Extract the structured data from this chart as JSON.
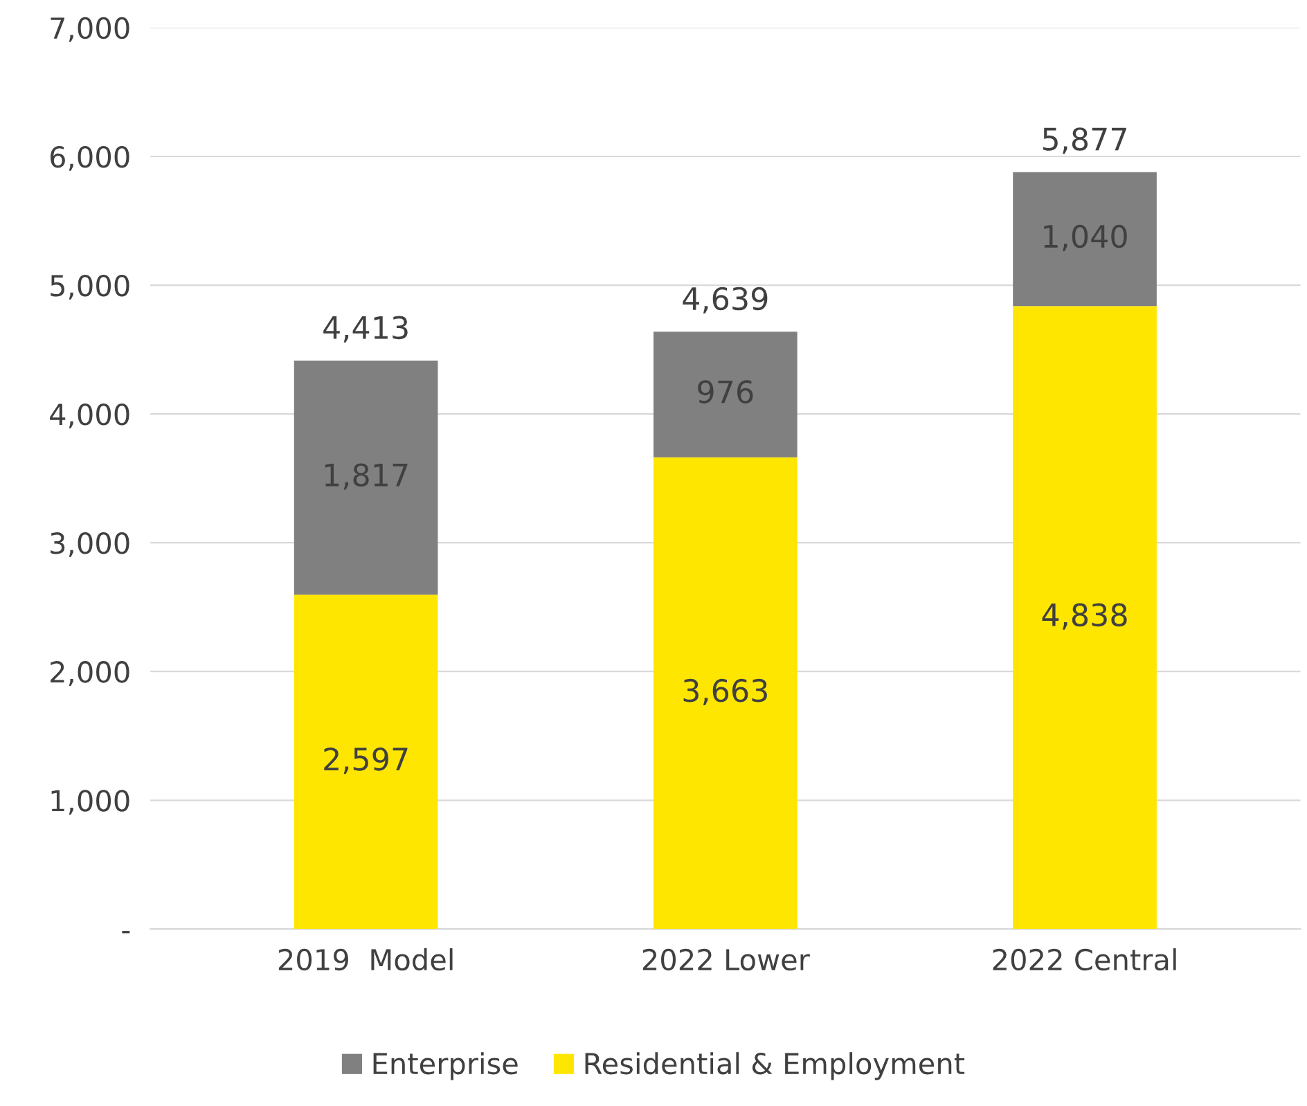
{
  "chart_data": {
    "type": "bar",
    "stacked": true,
    "categories": [
      "2019  Model",
      "2022 Lower",
      "2022 Central"
    ],
    "series": [
      {
        "name": "Residential & Employment",
        "color": "#ffe600",
        "values": [
          2597,
          3663,
          4838
        ],
        "value_labels": [
          "2,597",
          "3,663",
          "4,838"
        ]
      },
      {
        "name": "Enterprise",
        "color": "#808080",
        "values": [
          1817,
          976,
          1040
        ],
        "value_labels": [
          "1,817",
          "976",
          "1,040"
        ]
      }
    ],
    "totals": [
      "4,413",
      "4,639",
      "5,877"
    ],
    "ylim": [
      0,
      7000
    ],
    "yticks": [
      {
        "value": 0,
        "label": "-"
      },
      {
        "value": 1000,
        "label": "1,000"
      },
      {
        "value": 2000,
        "label": "2,000"
      },
      {
        "value": 3000,
        "label": "3,000"
      },
      {
        "value": 4000,
        "label": "4,000"
      },
      {
        "value": 5000,
        "label": "5,000"
      },
      {
        "value": 6000,
        "label": "6,000"
      },
      {
        "value": 7000,
        "label": "7,000"
      }
    ],
    "grid": "y",
    "legend": "bottom"
  }
}
